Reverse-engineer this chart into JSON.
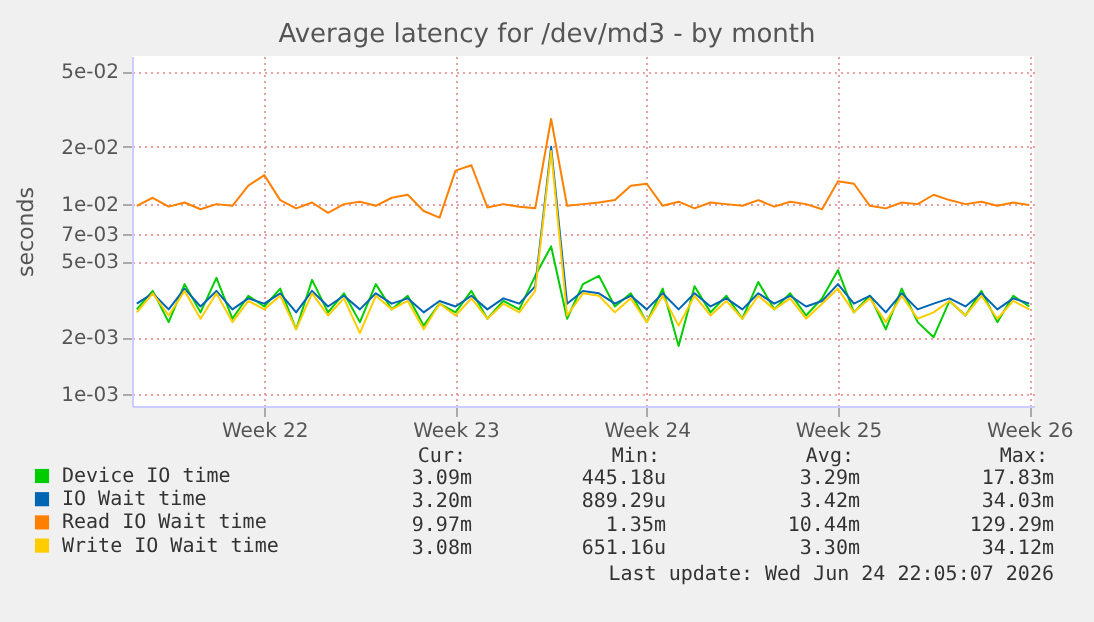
{
  "chart_data": {
    "type": "line",
    "title": "Average latency for /dev/md3 - by month",
    "ylabel": "seconds",
    "log": "y",
    "grid": true,
    "legend": "bottom left",
    "categories": [
      null,
      null,
      null,
      null,
      null,
      null,
      null,
      null,
      "Week 22",
      null,
      null,
      null,
      null,
      null,
      null,
      null,
      null,
      null,
      null,
      null,
      "Week 23",
      null,
      null,
      null,
      null,
      null,
      null,
      null,
      null,
      null,
      null,
      null,
      "Week 24",
      null,
      null,
      null,
      null,
      null,
      null,
      null,
      null,
      null,
      null,
      null,
      "Week 25",
      null,
      null,
      null,
      null,
      null,
      null,
      null,
      null,
      null,
      null,
      null,
      "Week 26"
    ],
    "ylim": [
      0.00087,
      0.06
    ],
    "yticks": [
      {
        "value": 0.001,
        "label": "1e-03"
      },
      {
        "value": 0.002,
        "label": "2e-03"
      },
      {
        "value": 0.005,
        "label": "5e-03"
      },
      {
        "value": 0.007,
        "label": "7e-03"
      },
      {
        "value": 0.01,
        "label": "1e-02"
      },
      {
        "value": 0.02,
        "label": "2e-02"
      },
      {
        "value": 0.05,
        "label": "5e-02"
      }
    ],
    "series": [
      {
        "name": "Device IO time",
        "color": "#00cc00",
        "values": [
          0.0028,
          0.0035,
          0.0024,
          0.0038,
          0.0027,
          0.0041,
          0.0025,
          0.0033,
          0.0029,
          0.0036,
          0.0022,
          0.004,
          0.0027,
          0.0034,
          0.0024,
          0.0038,
          0.0028,
          0.0033,
          0.0023,
          0.003,
          0.0027,
          0.0035,
          0.0025,
          0.0031,
          0.0028,
          0.0042,
          0.006,
          0.0025,
          0.0038,
          0.0042,
          0.0029,
          0.0034,
          0.0024,
          0.0036,
          0.0018,
          0.0037,
          0.0027,
          0.0033,
          0.0025,
          0.0039,
          0.0028,
          0.0034,
          0.0026,
          0.0032,
          0.0045,
          0.0027,
          0.0033,
          0.0022,
          0.0036,
          0.0024,
          0.002,
          0.0031,
          0.0026,
          0.0035,
          0.0024,
          0.0033,
          0.0029
        ]
      },
      {
        "name": "IO Wait time",
        "color": "#0066b3",
        "values": [
          0.003,
          0.0034,
          0.0028,
          0.0036,
          0.0029,
          0.0035,
          0.0028,
          0.0032,
          0.003,
          0.0034,
          0.0027,
          0.0035,
          0.0029,
          0.0033,
          0.0028,
          0.0034,
          0.003,
          0.0032,
          0.0027,
          0.0031,
          0.0029,
          0.0033,
          0.0028,
          0.0032,
          0.003,
          0.0037,
          0.02,
          0.003,
          0.0035,
          0.0034,
          0.003,
          0.0033,
          0.0028,
          0.0034,
          0.0028,
          0.0034,
          0.0029,
          0.0032,
          0.0028,
          0.0034,
          0.003,
          0.0033,
          0.0029,
          0.0031,
          0.0038,
          0.003,
          0.0033,
          0.0027,
          0.0034,
          0.0028,
          0.003,
          0.0032,
          0.0029,
          0.0034,
          0.0028,
          0.0032,
          0.003
        ]
      },
      {
        "name": "Read IO Wait time",
        "color": "#ff8000",
        "values": [
          0.0098,
          0.0108,
          0.0097,
          0.0102,
          0.0094,
          0.01,
          0.0098,
          0.0125,
          0.0142,
          0.0105,
          0.0095,
          0.0102,
          0.009,
          0.01,
          0.0103,
          0.0098,
          0.0108,
          0.0112,
          0.0092,
          0.0085,
          0.015,
          0.016,
          0.0096,
          0.01,
          0.0097,
          0.0095,
          0.028,
          0.0098,
          0.01,
          0.0102,
          0.0105,
          0.0125,
          0.0128,
          0.0098,
          0.0103,
          0.0095,
          0.0102,
          0.01,
          0.0098,
          0.0105,
          0.0097,
          0.0103,
          0.01,
          0.0094,
          0.0132,
          0.0128,
          0.0098,
          0.0095,
          0.0102,
          0.01,
          0.0112,
          0.0105,
          0.01,
          0.0103,
          0.0098,
          0.0102,
          0.0099
        ]
      },
      {
        "name": "Write IO Wait time",
        "color": "#ffcc00",
        "values": [
          0.0027,
          0.0034,
          0.0026,
          0.0035,
          0.0025,
          0.0034,
          0.0024,
          0.0031,
          0.0028,
          0.0033,
          0.0022,
          0.0034,
          0.0026,
          0.0032,
          0.0021,
          0.0033,
          0.0028,
          0.0031,
          0.0022,
          0.003,
          0.0026,
          0.0032,
          0.0025,
          0.003,
          0.0027,
          0.0035,
          0.019,
          0.0026,
          0.0034,
          0.0033,
          0.0027,
          0.0032,
          0.0024,
          0.0033,
          0.0023,
          0.0033,
          0.0026,
          0.0031,
          0.0025,
          0.0033,
          0.0028,
          0.0032,
          0.0025,
          0.003,
          0.0036,
          0.0027,
          0.0032,
          0.0024,
          0.0033,
          0.0025,
          0.0027,
          0.0031,
          0.0026,
          0.0033,
          0.0025,
          0.0031,
          0.0028
        ]
      }
    ],
    "annotations": [
      "Cur:",
      "Min:",
      "Avg:",
      "Max:",
      "3.09m",
      "445.18u",
      "3.29m",
      "17.83m",
      "3.20m",
      "889.29u",
      "3.42m",
      "34.03m",
      "9.97m",
      "1.35m",
      "10.44m",
      "129.29m",
      "3.08m",
      "651.16u",
      "3.30m",
      "34.12m",
      "Last update: Wed Jun 24 22:05:07 2026"
    ]
  }
}
